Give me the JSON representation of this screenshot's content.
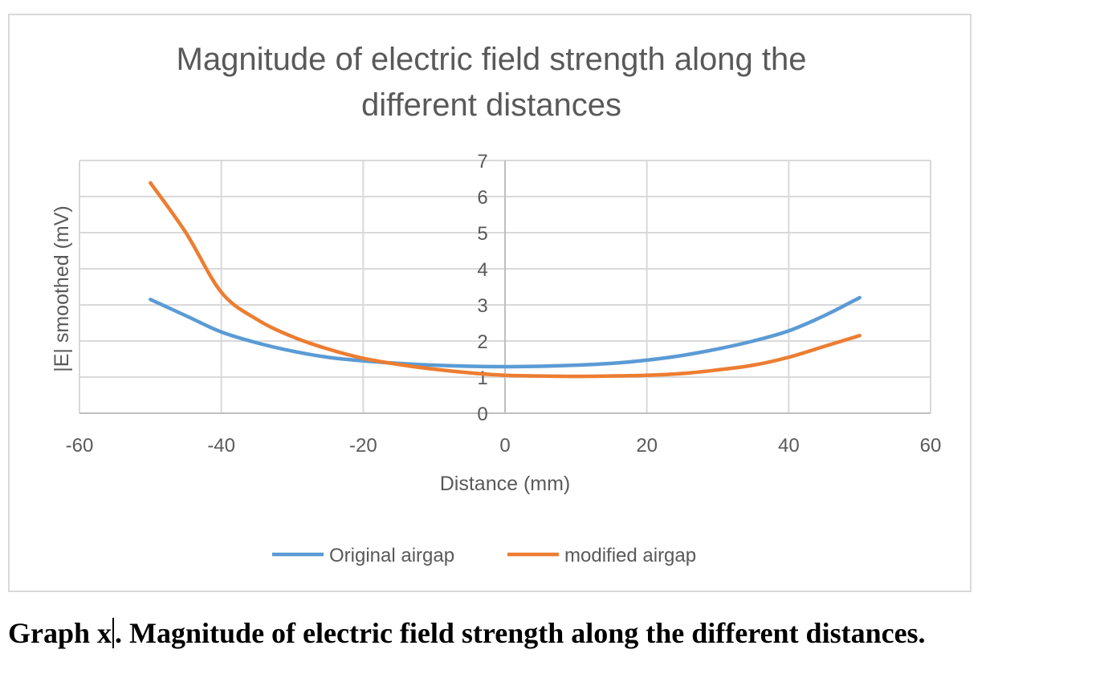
{
  "caption": {
    "prefix": "Graph x",
    "text": ". Magnitude of electric field strength along the different distances."
  },
  "chart_data": {
    "type": "line",
    "title_lines": [
      "Magnitude of electric field strength along the",
      "different distances"
    ],
    "xlabel": "Distance (mm)",
    "ylabel": "|E| smoothed (mV)",
    "xlim": [
      -60,
      60
    ],
    "ylim": [
      0,
      7
    ],
    "xticks": [
      -60,
      -40,
      -20,
      0,
      20,
      40,
      60
    ],
    "yticks": [
      0,
      1,
      2,
      3,
      4,
      5,
      6,
      7
    ],
    "grid": true,
    "legend_position": "bottom",
    "series": [
      {
        "name": "Original airgap",
        "color": "#5b9bd5",
        "x": [
          -50,
          -45,
          -40,
          -35,
          -30,
          -25,
          -20,
          -15,
          -10,
          -5,
          0,
          5,
          10,
          15,
          20,
          25,
          30,
          35,
          40,
          45,
          50
        ],
        "y": [
          3.15,
          2.7,
          2.25,
          1.95,
          1.72,
          1.55,
          1.45,
          1.38,
          1.33,
          1.3,
          1.29,
          1.3,
          1.33,
          1.38,
          1.47,
          1.6,
          1.78,
          2.0,
          2.28,
          2.7,
          3.2
        ]
      },
      {
        "name": "modified airgap",
        "color": "#ed7d31",
        "x": [
          -50,
          -45,
          -40,
          -35,
          -30,
          -25,
          -20,
          -15,
          -10,
          -5,
          0,
          5,
          10,
          15,
          20,
          25,
          30,
          35,
          40,
          45,
          50
        ],
        "y": [
          6.38,
          5.0,
          3.35,
          2.6,
          2.12,
          1.78,
          1.52,
          1.35,
          1.22,
          1.12,
          1.05,
          1.03,
          1.02,
          1.03,
          1.05,
          1.1,
          1.2,
          1.33,
          1.55,
          1.85,
          2.15
        ]
      }
    ]
  }
}
